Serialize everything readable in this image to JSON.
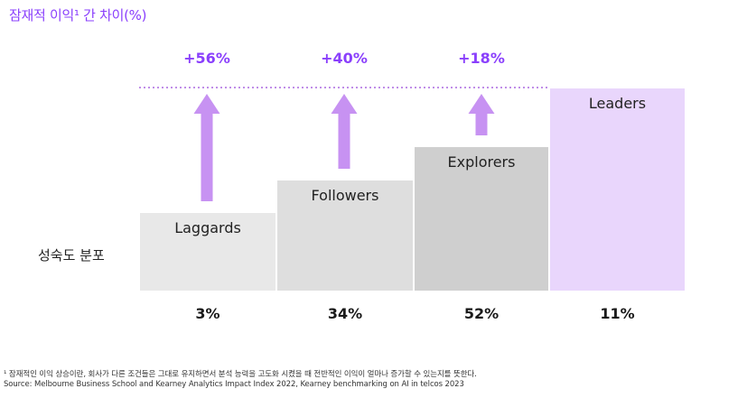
{
  "chart_data": {
    "type": "bar",
    "title": "잠재적 이익¹ 간 차이(%)",
    "ylabel": "성숙도 분포",
    "categories": [
      "Laggards",
      "Followers",
      "Explorers",
      "Leaders"
    ],
    "distribution_labels": [
      "3%",
      "34%",
      "52%",
      "11%"
    ],
    "distribution": [
      3,
      34,
      52,
      11
    ],
    "gap_labels": [
      "+56%",
      "+40%",
      "+18%"
    ],
    "gaps": [
      56,
      40,
      18
    ],
    "colors": {
      "accent": "#8a3ffc",
      "arrow": "#c792f2",
      "laggards": "#e8e8e8",
      "followers": "#dedede",
      "explorers": "#cfcfcf",
      "leaders": "#e9d6fc",
      "dotted": "#c08ee8"
    }
  },
  "footnote": "¹ 잠재적인 이익 상승이란, 회사가 다른 조건들은 그대로 유지하면서 분석 능력을 고도화 시켰을 때 전반적인 이익이 얼마나 증가할 수 있는지를 뜻한다.",
  "source": "Source: Melbourne Business School and Kearney Analytics Impact Index 2022, Kearney benchmarking on AI in telcos 2023"
}
